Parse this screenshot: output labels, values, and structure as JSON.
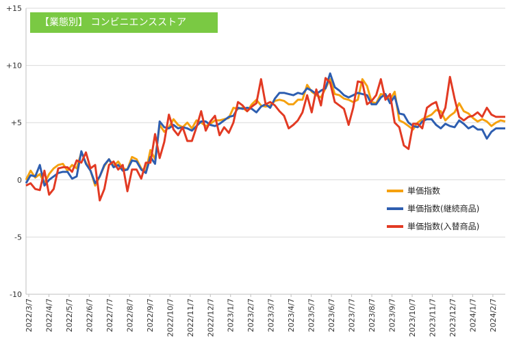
{
  "chart_data": {
    "type": "line",
    "title": "【業態別】 コンビニエンスストア",
    "xlabel": "",
    "ylabel": "",
    "ylim": [
      -10,
      15
    ],
    "y_ticks": [
      "+15",
      "+10",
      "+5",
      "0",
      "-5",
      "-10"
    ],
    "y_tick_values": [
      15,
      10,
      5,
      0,
      -5,
      -10
    ],
    "x_tick_labels": [
      "2022/3/7",
      "2022/4/7",
      "2022/5/7",
      "2022/6/7",
      "2022/7/7",
      "2022/8/7",
      "2022/9/7",
      "2022/10/7",
      "2022/11/7",
      "2022/12/7",
      "2023/1/7",
      "2023/2/7",
      "2023/3/7",
      "2023/4/7",
      "2023/5/7",
      "2023/6/7",
      "2023/7/7",
      "2023/8/7",
      "2023/9/7",
      "2023/10/7",
      "2023/11/7",
      "2023/12/7",
      "2024/1/7",
      "2024/2/7"
    ],
    "grid": "horizontal",
    "legend_position": "right-middle",
    "series": [
      {
        "name": "単価指数",
        "color": "#f5a10f",
        "values": [
          0.0,
          0.8,
          0.2,
          0.5,
          -0.3,
          0.5,
          1.0,
          1.3,
          1.4,
          0.8,
          1.3,
          1.0,
          2.4,
          1.5,
          0.8,
          -0.5,
          0.3,
          1.2,
          1.8,
          1.2,
          1.6,
          1.0,
          0.9,
          2.0,
          1.8,
          1.0,
          0.7,
          2.6,
          1.8,
          4.8,
          4.2,
          4.6,
          5.3,
          4.8,
          4.6,
          5.0,
          4.5,
          5.2,
          5.0,
          4.7,
          4.9,
          5.2,
          5.2,
          5.3,
          5.4,
          6.3,
          6.2,
          6.3,
          6.0,
          6.6,
          7.0,
          6.5,
          6.4,
          6.5,
          6.9,
          7.0,
          6.9,
          6.6,
          6.6,
          7.0,
          7.0,
          8.3,
          7.7,
          7.4,
          7.2,
          8.0,
          8.8,
          7.5,
          7.4,
          7.1,
          7.0,
          6.8,
          7.0,
          8.8,
          8.2,
          6.8,
          6.7,
          7.5,
          7.4,
          7.0,
          7.7,
          5.2,
          5.0,
          4.7,
          4.4,
          5.0,
          5.3,
          5.5,
          5.7,
          6.1,
          6.0,
          5.2,
          5.6,
          5.9,
          6.7,
          6.0,
          5.8,
          5.4,
          5.1,
          5.3,
          5.1,
          4.7,
          5.0,
          5.2,
          5.1
        ]
      },
      {
        "name": "単価指数(継続商品)",
        "color": "#2e5eb0",
        "values": [
          -0.3,
          0.4,
          0.3,
          1.3,
          -0.5,
          0.0,
          0.3,
          0.6,
          0.7,
          0.7,
          0.1,
          0.3,
          2.5,
          1.4,
          0.8,
          -0.3,
          0.3,
          1.3,
          1.8,
          1.1,
          1.3,
          0.8,
          0.9,
          1.7,
          1.6,
          0.9,
          0.6,
          2.0,
          1.4,
          5.1,
          4.6,
          4.5,
          4.8,
          4.5,
          4.6,
          4.5,
          4.3,
          4.7,
          5.1,
          5.1,
          4.8,
          4.7,
          4.9,
          5.2,
          5.5,
          5.6,
          6.3,
          6.2,
          6.3,
          6.2,
          5.9,
          6.4,
          6.6,
          6.3,
          7.1,
          7.6,
          7.6,
          7.5,
          7.4,
          7.6,
          7.5,
          8.0,
          7.8,
          7.5,
          7.8,
          8.0,
          9.3,
          8.1,
          7.8,
          7.4,
          7.2,
          7.4,
          7.6,
          7.5,
          7.4,
          6.6,
          6.6,
          7.2,
          7.5,
          6.7,
          7.3,
          5.8,
          5.7,
          5.0,
          4.7,
          4.6,
          5.1,
          5.3,
          5.3,
          4.8,
          4.5,
          4.9,
          4.7,
          4.6,
          5.2,
          4.9,
          4.5,
          4.7,
          4.4,
          4.4,
          3.6,
          4.2,
          4.5,
          4.5,
          4.5
        ]
      },
      {
        "name": "単価指数(入替商品)",
        "color": "#e23a23",
        "values": [
          -0.5,
          -0.3,
          -0.8,
          -0.9,
          0.8,
          -1.3,
          -0.8,
          1.0,
          1.1,
          1.1,
          0.7,
          1.7,
          1.5,
          2.4,
          1.0,
          1.3,
          -1.8,
          -0.8,
          1.3,
          1.6,
          0.9,
          1.3,
          -1.0,
          0.9,
          0.9,
          0.1,
          1.5,
          1.5,
          4.0,
          1.9,
          3.3,
          5.7,
          4.4,
          3.9,
          4.6,
          3.4,
          3.4,
          4.6,
          6.0,
          4.3,
          5.1,
          5.6,
          3.9,
          4.6,
          4.1,
          5.0,
          6.8,
          6.5,
          6.0,
          6.4,
          6.7,
          8.8,
          6.6,
          6.8,
          6.5,
          6.0,
          5.6,
          4.5,
          4.8,
          5.2,
          5.9,
          7.4,
          5.9,
          7.9,
          6.5,
          8.9,
          8.5,
          6.8,
          6.5,
          6.2,
          4.8,
          6.3,
          8.6,
          8.5,
          6.6,
          6.9,
          7.4,
          8.8,
          7.0,
          7.5,
          5.0,
          4.6,
          3.0,
          2.7,
          4.9,
          4.9,
          4.5,
          6.3,
          6.6,
          6.8,
          5.4,
          6.3,
          9.0,
          7.1,
          5.5,
          5.2,
          5.5,
          5.6,
          5.9,
          5.5,
          6.3,
          5.7,
          5.5,
          5.5,
          5.5
        ]
      }
    ]
  }
}
